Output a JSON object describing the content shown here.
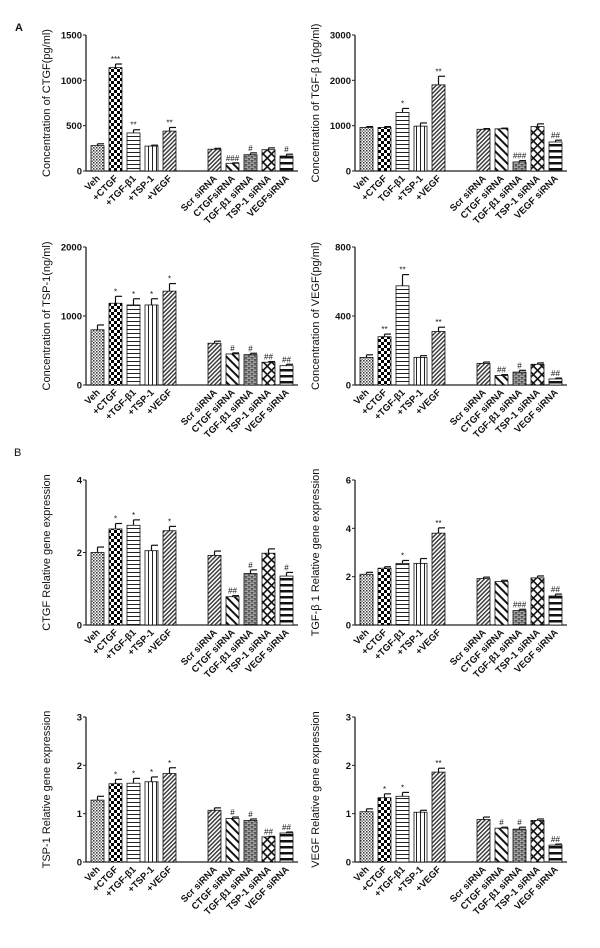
{
  "figure": {
    "panel_letters": [
      "A",
      "B"
    ]
  },
  "patterns_legend": {
    "Veh": "fine-grid",
    "+CTGF": "checkerboard",
    "+TGF-β1": "horizontal-lines",
    "TGF-β1": "horizontal-lines",
    "+TSP-1": "vertical-lines",
    "+VEGF": "dense-diagonal",
    "Scr siRNA": "dense-diagonal",
    "CTGF siRNA": "wide-diagonal",
    "TGF-β1 siRNA": "brick",
    "TSP-1 siRNA": "crosshatch",
    "VEGF siRNA": "thick-horizontal"
  },
  "chart_data": [
    {
      "type": "bar",
      "panel": "A",
      "ylabel": "Concentration of CTGF(pg/ml)",
      "ylim": [
        0,
        1500
      ],
      "yticks": [
        0,
        500,
        1000,
        1500
      ],
      "categories": [
        "Veh",
        "+CTGF",
        "+TGF-β1",
        "+TSP-1",
        "+VEGF",
        "Scr siRNA",
        "CTGFsiRNA",
        "TGF-β1 siRNA",
        "TSP-1 siRNA",
        "VEGFsiRNA"
      ],
      "patterns": [
        "fine-grid",
        "checkerboard",
        "horizontal-lines",
        "vertical-lines",
        "dense-diagonal",
        "dense-diagonal",
        "wide-diagonal",
        "brick",
        "crosshatch",
        "thick-horizontal"
      ],
      "values": [
        280,
        1140,
        420,
        275,
        440,
        240,
        85,
        180,
        235,
        165
      ],
      "errors": [
        20,
        40,
        35,
        10,
        40,
        10,
        5,
        20,
        20,
        20
      ],
      "annotations": [
        "",
        "***",
        "**",
        "",
        "**",
        "",
        "###",
        "#",
        "",
        "#"
      ]
    },
    {
      "type": "bar",
      "ylabel": "Concentration of TGF-β 1(pg/ml)",
      "ylim": [
        0,
        3000
      ],
      "yticks": [
        0,
        1000,
        2000,
        3000
      ],
      "categories": [
        "Veh",
        "+CTGF",
        "TGF-β1",
        "+TSP-1",
        "+VEGF",
        "Scr siRNA",
        "CTGF siRNA",
        "TGF-β1 siRNA",
        "TSP-1 siRNA",
        "VEGF siRNA"
      ],
      "patterns": [
        "fine-grid",
        "checkerboard",
        "horizontal-lines",
        "vertical-lines",
        "dense-diagonal",
        "dense-diagonal",
        "wide-diagonal",
        "brick",
        "crosshatch",
        "thick-horizontal"
      ],
      "values": [
        960,
        960,
        1290,
        990,
        1900,
        920,
        930,
        200,
        980,
        640
      ],
      "errors": [
        20,
        20,
        90,
        70,
        190,
        15,
        15,
        30,
        60,
        40
      ],
      "annotations": [
        "",
        "",
        "*",
        "",
        "**",
        "",
        "",
        "###",
        "",
        "##"
      ]
    },
    {
      "type": "bar",
      "ylabel": "Concentration of TSP-1(ng/ml)",
      "ylim": [
        0,
        2000
      ],
      "yticks": [
        0,
        1000,
        2000
      ],
      "categories": [
        "Veh",
        "+CTGF",
        "+TGF-β1",
        "+TSP-1",
        "+VEGF",
        "Scr siRNA",
        "CTGF siRNA",
        "TGF-β1 siRNA",
        "TSP-1 siRNA",
        "VEGF siRNA"
      ],
      "patterns": [
        "fine-grid",
        "checkerboard",
        "horizontal-lines",
        "vertical-lines",
        "dense-diagonal",
        "dense-diagonal",
        "wide-diagonal",
        "brick",
        "crosshatch",
        "thick-horizontal"
      ],
      "values": [
        800,
        1185,
        1160,
        1160,
        1360,
        605,
        450,
        440,
        330,
        280
      ],
      "errors": [
        70,
        100,
        90,
        90,
        110,
        30,
        15,
        20,
        10,
        20
      ],
      "annotations": [
        "",
        "*",
        "*",
        "*",
        "*",
        "",
        "#",
        "#",
        "##",
        "##"
      ]
    },
    {
      "type": "bar",
      "ylabel": "Concentration of VEGF(pg/ml)",
      "ylim": [
        0,
        800
      ],
      "yticks": [
        0,
        400,
        800
      ],
      "categories": [
        "Veh",
        "+CTGF",
        "+TGF-β1",
        "+TSP-1",
        "+VEGF",
        "Scr siRNA",
        "CTGF siRNA",
        "TGF-β1 siRNA",
        "TSP-1 siRNA",
        "VEGF siRNA"
      ],
      "patterns": [
        "fine-grid",
        "checkerboard",
        "horizontal-lines",
        "vertical-lines",
        "dense-diagonal",
        "dense-diagonal",
        "wide-diagonal",
        "brick",
        "crosshatch",
        "thick-horizontal"
      ],
      "values": [
        160,
        280,
        575,
        160,
        310,
        125,
        55,
        75,
        120,
        35
      ],
      "errors": [
        15,
        15,
        65,
        10,
        25,
        8,
        5,
        10,
        8,
        5
      ],
      "annotations": [
        "",
        "**",
        "**",
        "",
        "**",
        "",
        "##",
        "#",
        "",
        "##"
      ]
    },
    {
      "type": "bar",
      "panel": "B",
      "ylabel": "CTGF Relative gene expression",
      "ylim": [
        0,
        4
      ],
      "yticks": [
        0,
        2,
        4
      ],
      "categories": [
        "Veh",
        "+CTGF",
        "+TGF-β1",
        "+TSP-1",
        "+VEGF",
        "Scr siRNA",
        "CTGF siRNA",
        "TGF-β1 siRNA",
        "TSP-1 siRNA",
        "VEGF siRNA"
      ],
      "patterns": [
        "fine-grid",
        "checkerboard",
        "horizontal-lines",
        "vertical-lines",
        "dense-diagonal",
        "dense-diagonal",
        "wide-diagonal",
        "brick",
        "crosshatch",
        "thick-horizontal"
      ],
      "values": [
        2.0,
        2.65,
        2.75,
        2.05,
        2.6,
        1.92,
        0.78,
        1.42,
        1.98,
        1.35
      ],
      "errors": [
        0.15,
        0.15,
        0.15,
        0.15,
        0.12,
        0.12,
        0.03,
        0.1,
        0.12,
        0.1
      ],
      "annotations": [
        "",
        "*",
        "*",
        "",
        "*",
        "",
        "##",
        "#",
        "",
        "#"
      ]
    },
    {
      "type": "bar",
      "ylabel": "TGF-β 1 Relative gene expression",
      "ylim": [
        0,
        6
      ],
      "yticks": [
        0,
        2,
        4,
        6
      ],
      "categories": [
        "Veh",
        "+CTGF",
        "+TGF-β1",
        "+TSP-1",
        "+VEGF",
        "Scr siRNA",
        "CTGF siRNA",
        "TGF-β1 siRNA",
        "TSP-1 siRNA",
        "VEGF siRNA"
      ],
      "patterns": [
        "fine-grid",
        "checkerboard",
        "horizontal-lines",
        "vertical-lines",
        "dense-diagonal",
        "dense-diagonal",
        "wide-diagonal",
        "brick",
        "crosshatch",
        "thick-horizontal"
      ],
      "values": [
        2.1,
        2.35,
        2.55,
        2.55,
        3.8,
        1.92,
        1.8,
        0.6,
        1.95,
        1.2
      ],
      "errors": [
        0.08,
        0.06,
        0.12,
        0.2,
        0.22,
        0.06,
        0.05,
        0.05,
        0.08,
        0.08
      ],
      "annotations": [
        "",
        "",
        "*",
        "",
        "**",
        "",
        "",
        "###",
        "",
        "##"
      ]
    },
    {
      "type": "bar",
      "ylabel": "TSP-1 Relative gene expression",
      "ylim": [
        0,
        3
      ],
      "yticks": [
        0,
        1,
        2,
        3
      ],
      "categories": [
        "Veh",
        "+CTGF",
        "+TGF-β1",
        "+TSP-1",
        "+VEGF",
        "Scr siRNA",
        "CTGF siRNA",
        "TGF-β1 siRNA",
        "TSP-1 siRNA",
        "VEGF siRNA"
      ],
      "patterns": [
        "fine-grid",
        "checkerboard",
        "horizontal-lines",
        "vertical-lines",
        "dense-diagonal",
        "dense-diagonal",
        "wide-diagonal",
        "brick",
        "crosshatch",
        "thick-horizontal"
      ],
      "values": [
        1.28,
        1.62,
        1.63,
        1.66,
        1.83,
        1.07,
        0.9,
        0.86,
        0.52,
        0.6
      ],
      "errors": [
        0.08,
        0.09,
        0.1,
        0.1,
        0.12,
        0.05,
        0.03,
        0.03,
        0.01,
        0.02
      ],
      "annotations": [
        "",
        "*",
        "*",
        "*",
        "*",
        "",
        "#",
        "#",
        "##",
        "##"
      ]
    },
    {
      "type": "bar",
      "ylabel": "VEGF Relative gene expression",
      "ylim": [
        0,
        3
      ],
      "yticks": [
        0,
        1,
        2,
        3
      ],
      "categories": [
        "Veh",
        "+CTGF",
        "+TGF-β1",
        "+TSP-1",
        "+VEGF",
        "Scr siRNA",
        "CTGF siRNA",
        "TGF-β1 siRNA",
        "TSP-1 siRNA",
        "VEGF siRNA"
      ],
      "patterns": [
        "fine-grid",
        "checkerboard",
        "horizontal-lines",
        "vertical-lines",
        "dense-diagonal",
        "dense-diagonal",
        "wide-diagonal",
        "brick",
        "crosshatch",
        "thick-horizontal"
      ],
      "values": [
        1.04,
        1.33,
        1.36,
        1.03,
        1.86,
        0.88,
        0.7,
        0.68,
        0.86,
        0.35
      ],
      "errors": [
        0.06,
        0.08,
        0.08,
        0.04,
        0.08,
        0.05,
        0.02,
        0.04,
        0.03,
        0.02
      ],
      "annotations": [
        "",
        "*",
        "*",
        "",
        "**",
        "",
        "#",
        "#",
        "",
        "##"
      ]
    }
  ]
}
